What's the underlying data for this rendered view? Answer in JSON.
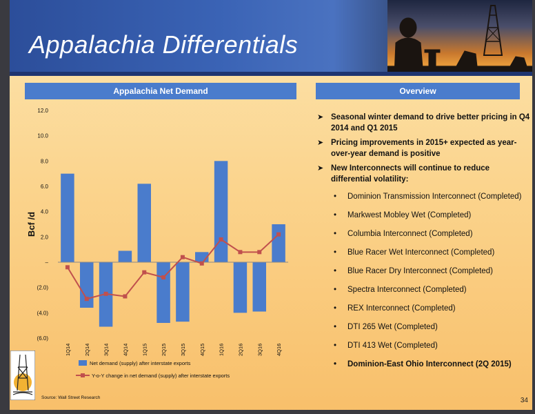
{
  "slide": {
    "title": "Appalachia Differentials",
    "page_number": "34",
    "source": "Source: Wall Street Research",
    "colors": {
      "header": "#3a63b5",
      "section_bar": "#4a7ccc",
      "bar_series": "#4a7ccc",
      "line_series": "#c0504d"
    }
  },
  "left_section": {
    "title": "Appalachia Net Demand"
  },
  "right_section": {
    "title": "Overview",
    "bullets": [
      "Seasonal winter demand to drive better pricing in Q4 2014 and Q1 2015",
      "Pricing improvements in 2015+ expected as year-over-year demand is positive",
      "New Interconnects will continue to reduce differential volatility:"
    ],
    "sub_bullets": [
      "Dominion Transmission Interconnect (Completed)",
      "Markwest Mobley Wet (Completed)",
      "Columbia Interconnect (Completed)",
      "Blue Racer Wet Interconnect (Completed)",
      "Blue Racer Dry Interconnect (Completed)",
      "Spectra Interconnect (Completed)",
      "REX Interconnect (Completed)",
      "DTI 265 Wet (Completed)",
      "DTI 413 Wet (Completed)",
      "Dominion-East Ohio Interconnect (2Q  2015)"
    ]
  },
  "chart_data": {
    "type": "bar",
    "categories": [
      "1Q14",
      "2Q14",
      "3Q14",
      "4Q14",
      "1Q15",
      "2Q15",
      "3Q15",
      "4Q15",
      "1Q16",
      "2Q16",
      "3Q16",
      "4Q16"
    ],
    "ylabel": "Bcf /d",
    "ylim": [
      -6,
      12
    ],
    "yticks": [
      12,
      10,
      8,
      6,
      4,
      2,
      0,
      -2,
      -4,
      -6
    ],
    "ytick_labels": [
      "12.0",
      "10.0",
      "8.0",
      "6.0",
      "4.0",
      "2.0",
      "–",
      "(2.0)",
      "(4.0)",
      "(6.0)"
    ],
    "series": [
      {
        "name": "Net demand (supply) after interstate exports",
        "type": "bar",
        "values": [
          7.0,
          -3.6,
          -5.1,
          0.9,
          6.2,
          -4.8,
          -4.7,
          0.8,
          8.0,
          -4.0,
          -3.9,
          3.0
        ]
      },
      {
        "name": "Y-o-Y change in net demand (supply) after interstate exports",
        "type": "line",
        "values": [
          -0.4,
          -2.9,
          -2.5,
          -2.7,
          -0.8,
          -1.2,
          0.4,
          -0.1,
          1.8,
          0.8,
          0.8,
          2.2
        ]
      }
    ],
    "legend_position": "bottom",
    "grid": false
  }
}
